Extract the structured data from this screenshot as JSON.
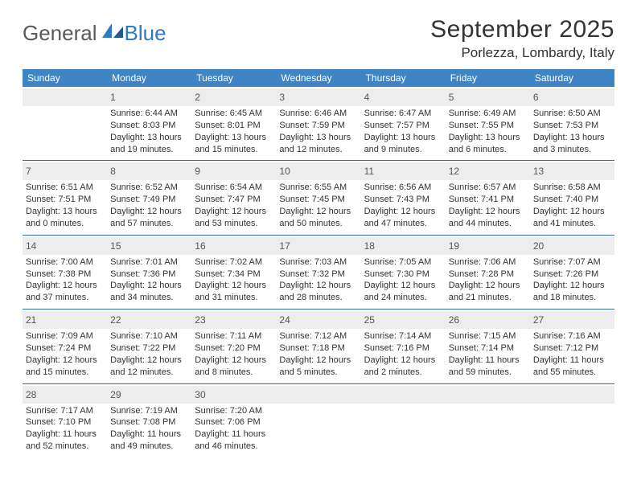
{
  "logo": {
    "general": "General",
    "blue": "Blue"
  },
  "title": "September 2025",
  "location": "Porlezza, Lombardy, Italy",
  "colors": {
    "header_bg": "#3f85c6",
    "row_divider": "#2f6aa8",
    "daynum_bg": "#ededed",
    "text": "#333333",
    "logo_gray": "#5a5a5a",
    "logo_blue": "#2f78c2"
  },
  "weekdays": [
    "Sunday",
    "Monday",
    "Tuesday",
    "Wednesday",
    "Thursday",
    "Friday",
    "Saturday"
  ],
  "weeks": [
    [
      {
        "day": "",
        "lines": []
      },
      {
        "day": "1",
        "lines": [
          "Sunrise: 6:44 AM",
          "Sunset: 8:03 PM",
          "Daylight: 13 hours and 19 minutes."
        ]
      },
      {
        "day": "2",
        "lines": [
          "Sunrise: 6:45 AM",
          "Sunset: 8:01 PM",
          "Daylight: 13 hours and 15 minutes."
        ]
      },
      {
        "day": "3",
        "lines": [
          "Sunrise: 6:46 AM",
          "Sunset: 7:59 PM",
          "Daylight: 13 hours and 12 minutes."
        ]
      },
      {
        "day": "4",
        "lines": [
          "Sunrise: 6:47 AM",
          "Sunset: 7:57 PM",
          "Daylight: 13 hours and 9 minutes."
        ]
      },
      {
        "day": "5",
        "lines": [
          "Sunrise: 6:49 AM",
          "Sunset: 7:55 PM",
          "Daylight: 13 hours and 6 minutes."
        ]
      },
      {
        "day": "6",
        "lines": [
          "Sunrise: 6:50 AM",
          "Sunset: 7:53 PM",
          "Daylight: 13 hours and 3 minutes."
        ]
      }
    ],
    [
      {
        "day": "7",
        "lines": [
          "Sunrise: 6:51 AM",
          "Sunset: 7:51 PM",
          "Daylight: 13 hours and 0 minutes."
        ]
      },
      {
        "day": "8",
        "lines": [
          "Sunrise: 6:52 AM",
          "Sunset: 7:49 PM",
          "Daylight: 12 hours and 57 minutes."
        ]
      },
      {
        "day": "9",
        "lines": [
          "Sunrise: 6:54 AM",
          "Sunset: 7:47 PM",
          "Daylight: 12 hours and 53 minutes."
        ]
      },
      {
        "day": "10",
        "lines": [
          "Sunrise: 6:55 AM",
          "Sunset: 7:45 PM",
          "Daylight: 12 hours and 50 minutes."
        ]
      },
      {
        "day": "11",
        "lines": [
          "Sunrise: 6:56 AM",
          "Sunset: 7:43 PM",
          "Daylight: 12 hours and 47 minutes."
        ]
      },
      {
        "day": "12",
        "lines": [
          "Sunrise: 6:57 AM",
          "Sunset: 7:41 PM",
          "Daylight: 12 hours and 44 minutes."
        ]
      },
      {
        "day": "13",
        "lines": [
          "Sunrise: 6:58 AM",
          "Sunset: 7:40 PM",
          "Daylight: 12 hours and 41 minutes."
        ]
      }
    ],
    [
      {
        "day": "14",
        "lines": [
          "Sunrise: 7:00 AM",
          "Sunset: 7:38 PM",
          "Daylight: 12 hours and 37 minutes."
        ]
      },
      {
        "day": "15",
        "lines": [
          "Sunrise: 7:01 AM",
          "Sunset: 7:36 PM",
          "Daylight: 12 hours and 34 minutes."
        ]
      },
      {
        "day": "16",
        "lines": [
          "Sunrise: 7:02 AM",
          "Sunset: 7:34 PM",
          "Daylight: 12 hours and 31 minutes."
        ]
      },
      {
        "day": "17",
        "lines": [
          "Sunrise: 7:03 AM",
          "Sunset: 7:32 PM",
          "Daylight: 12 hours and 28 minutes."
        ]
      },
      {
        "day": "18",
        "lines": [
          "Sunrise: 7:05 AM",
          "Sunset: 7:30 PM",
          "Daylight: 12 hours and 24 minutes."
        ]
      },
      {
        "day": "19",
        "lines": [
          "Sunrise: 7:06 AM",
          "Sunset: 7:28 PM",
          "Daylight: 12 hours and 21 minutes."
        ]
      },
      {
        "day": "20",
        "lines": [
          "Sunrise: 7:07 AM",
          "Sunset: 7:26 PM",
          "Daylight: 12 hours and 18 minutes."
        ]
      }
    ],
    [
      {
        "day": "21",
        "lines": [
          "Sunrise: 7:09 AM",
          "Sunset: 7:24 PM",
          "Daylight: 12 hours and 15 minutes."
        ]
      },
      {
        "day": "22",
        "lines": [
          "Sunrise: 7:10 AM",
          "Sunset: 7:22 PM",
          "Daylight: 12 hours and 12 minutes."
        ]
      },
      {
        "day": "23",
        "lines": [
          "Sunrise: 7:11 AM",
          "Sunset: 7:20 PM",
          "Daylight: 12 hours and 8 minutes."
        ]
      },
      {
        "day": "24",
        "lines": [
          "Sunrise: 7:12 AM",
          "Sunset: 7:18 PM",
          "Daylight: 12 hours and 5 minutes."
        ]
      },
      {
        "day": "25",
        "lines": [
          "Sunrise: 7:14 AM",
          "Sunset: 7:16 PM",
          "Daylight: 12 hours and 2 minutes."
        ]
      },
      {
        "day": "26",
        "lines": [
          "Sunrise: 7:15 AM",
          "Sunset: 7:14 PM",
          "Daylight: 11 hours and 59 minutes."
        ]
      },
      {
        "day": "27",
        "lines": [
          "Sunrise: 7:16 AM",
          "Sunset: 7:12 PM",
          "Daylight: 11 hours and 55 minutes."
        ]
      }
    ],
    [
      {
        "day": "28",
        "lines": [
          "Sunrise: 7:17 AM",
          "Sunset: 7:10 PM",
          "Daylight: 11 hours and 52 minutes."
        ]
      },
      {
        "day": "29",
        "lines": [
          "Sunrise: 7:19 AM",
          "Sunset: 7:08 PM",
          "Daylight: 11 hours and 49 minutes."
        ]
      },
      {
        "day": "30",
        "lines": [
          "Sunrise: 7:20 AM",
          "Sunset: 7:06 PM",
          "Daylight: 11 hours and 46 minutes."
        ]
      },
      {
        "day": "",
        "lines": []
      },
      {
        "day": "",
        "lines": []
      },
      {
        "day": "",
        "lines": []
      },
      {
        "day": "",
        "lines": []
      }
    ]
  ]
}
